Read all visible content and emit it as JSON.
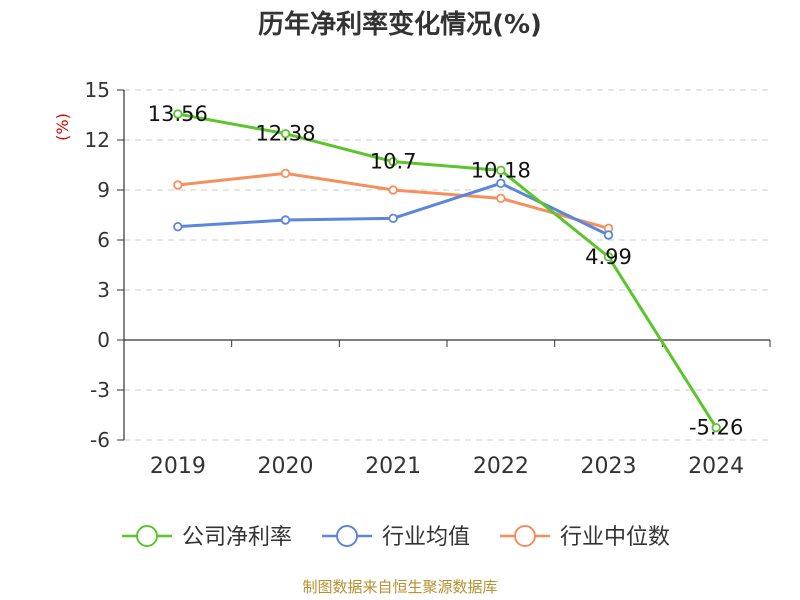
{
  "chart_data": {
    "type": "line",
    "title": "历年净利率变化情况(%)",
    "ylabel": "(%)",
    "categories": [
      "2019",
      "2020",
      "2021",
      "2022",
      "2023",
      "2024"
    ],
    "ylim": [
      -6,
      15
    ],
    "yticks": [
      15,
      12,
      9,
      6,
      3,
      0,
      -3,
      -6
    ],
    "grid": true,
    "legend_position": "bottom",
    "series": [
      {
        "name": "公司净利率",
        "color": "#5cc52b",
        "values": [
          13.56,
          12.38,
          10.7,
          10.18,
          4.99,
          -5.26
        ],
        "show_labels": true
      },
      {
        "name": "行业均值",
        "color": "#5b86db",
        "values": [
          6.8,
          7.2,
          7.3,
          9.4,
          6.3,
          null
        ],
        "show_labels": false
      },
      {
        "name": "行业中位数",
        "color": "#f5905d",
        "values": [
          9.3,
          10.0,
          9.0,
          8.5,
          6.7,
          null
        ],
        "show_labels": false
      }
    ],
    "data_labels": [
      "13.56",
      "12.38",
      "10.7",
      "10.18",
      "4.99",
      "-5.26"
    ],
    "source": "制图数据来自恒生聚源数据库"
  }
}
